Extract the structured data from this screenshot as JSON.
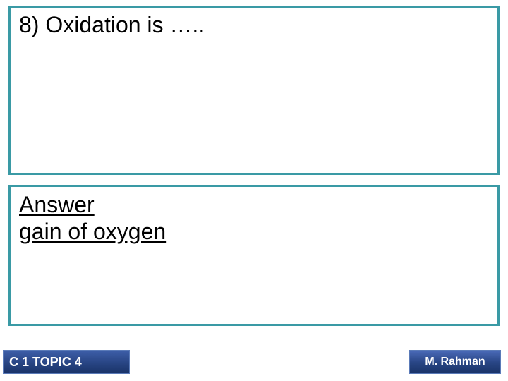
{
  "question": {
    "text": "8) Oxidation is ….."
  },
  "answer": {
    "label": "Answer",
    "text": "gain of oxygen"
  },
  "footer": {
    "left": "C 1 TOPIC 4",
    "right": "M. Rahman"
  },
  "colors": {
    "box_border": "#3a9aa5",
    "footer_bg_top": "#4a6ab8",
    "footer_bg_bottom": "#1a3368",
    "footer_text": "#ffffff",
    "body_text": "#000000",
    "background": "#ffffff"
  }
}
